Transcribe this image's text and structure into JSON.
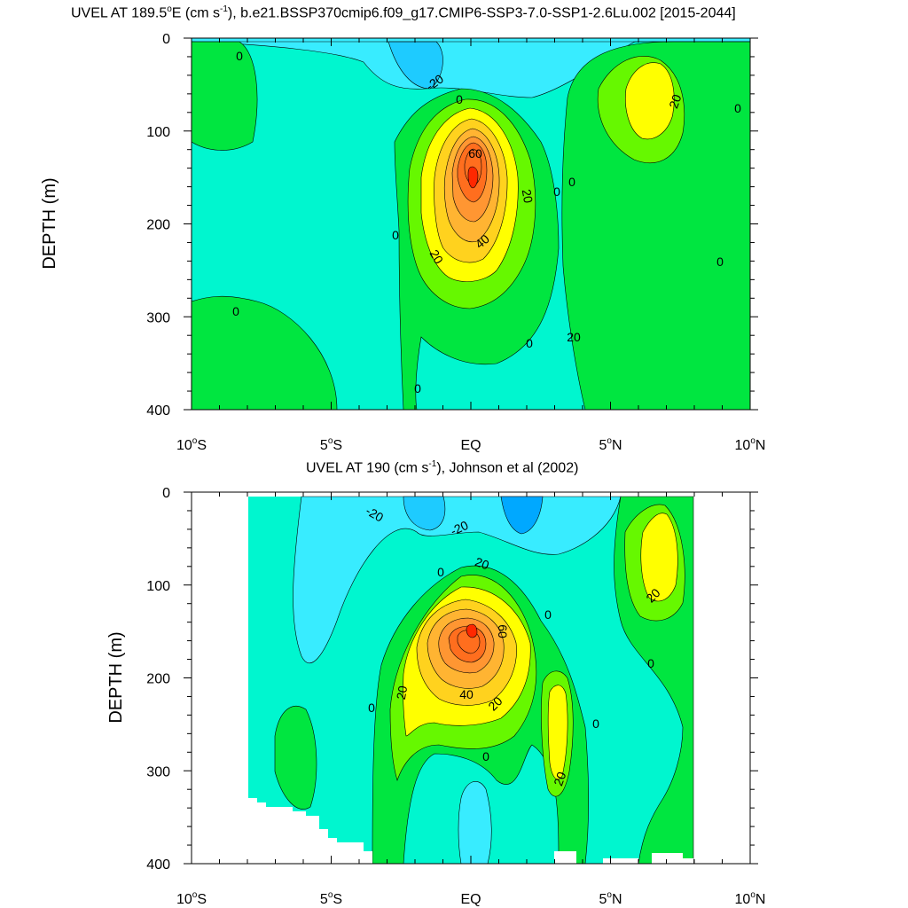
{
  "chart_data": [
    {
      "type": "contour",
      "title_main": "UVEL AT 189.5",
      "title_deg": "o",
      "title_units_pre": "E (cm s",
      "title_units_exp": "-1",
      "title_rest": "), b.e21.BSSP370cmip6.f09_g17.CMIP6-SSP3-7.0-SSP1-2.6Lu.002 [2015-2044]",
      "ylabel": "DEPTH (m)",
      "xlabel": "",
      "xlim": [
        -10,
        10
      ],
      "ylim": [
        400,
        0
      ],
      "xticks": [
        {
          "value": -10,
          "label": "10",
          "deg": "o",
          "hemi": "S"
        },
        {
          "value": -5,
          "label": "5",
          "deg": "o",
          "hemi": "S"
        },
        {
          "value": 0,
          "label": "EQ",
          "deg": "",
          "hemi": ""
        },
        {
          "value": 5,
          "label": "5",
          "deg": "o",
          "hemi": "N"
        },
        {
          "value": 10,
          "label": "10",
          "deg": "o",
          "hemi": "N"
        }
      ],
      "yticks": [
        "0",
        "100",
        "200",
        "300",
        "400"
      ],
      "contour_interval": 10,
      "contour_labels": [
        "0",
        "-20",
        "0",
        "60",
        "20",
        "0",
        "0",
        "0",
        "20",
        "40",
        "20",
        "0",
        "0",
        "0",
        "0",
        "20",
        "0"
      ],
      "features": [
        {
          "name": "equatorial undercurrent core",
          "x": 0,
          "depth": 150,
          "value": 75
        },
        {
          "name": "north subsurface eastward jet",
          "x": 7,
          "depth": 80,
          "value": 25
        },
        {
          "name": "surface westward flow",
          "x": -1.5,
          "depth": 20,
          "value": -25
        }
      ]
    },
    {
      "type": "contour",
      "title_main": "UVEL AT 190 (cm s",
      "title_units_exp": "-1",
      "title_rest": "), Johnson et al (2002)",
      "ylabel": "DEPTH (m)",
      "xlabel": "",
      "xlim": [
        -10,
        10
      ],
      "ylim": [
        400,
        0
      ],
      "data_extent_x": [
        -8,
        8
      ],
      "xticks": [
        {
          "value": -10,
          "label": "10",
          "deg": "o",
          "hemi": "S"
        },
        {
          "value": -5,
          "label": "5",
          "deg": "o",
          "hemi": "S"
        },
        {
          "value": 0,
          "label": "EQ",
          "deg": "",
          "hemi": ""
        },
        {
          "value": 5,
          "label": "5",
          "deg": "o",
          "hemi": "N"
        },
        {
          "value": 10,
          "label": "10",
          "deg": "o",
          "hemi": "N"
        }
      ],
      "yticks": [
        "0",
        "100",
        "200",
        "300",
        "400"
      ],
      "contour_interval": 10,
      "contour_labels": [
        "-20",
        "-20",
        "20",
        "0",
        "60",
        "40",
        "20",
        "20",
        "0",
        "0",
        "20",
        "0",
        "0",
        "0",
        "20"
      ],
      "features": [
        {
          "name": "equatorial undercurrent core",
          "x": 0,
          "depth": 150,
          "value": 80
        },
        {
          "name": "north subsurface eastward jet",
          "x": 7,
          "depth": 80,
          "value": 25
        },
        {
          "name": "surface westward flow",
          "x": 2,
          "depth": 20,
          "value": -30
        }
      ]
    }
  ],
  "colors": {
    "c_m30": "#00a8ff",
    "c_m20": "#1ecbff",
    "c_m10": "#38ecff",
    "c_0": "#00f6cf",
    "c_10": "#00e640",
    "c_20": "#66f800",
    "c_30": "#ffff00",
    "c_40": "#ffd21e",
    "c_50": "#ffb432",
    "c_60": "#ff9632",
    "c_70": "#ff6e1e",
    "c_80": "#ff2800"
  }
}
